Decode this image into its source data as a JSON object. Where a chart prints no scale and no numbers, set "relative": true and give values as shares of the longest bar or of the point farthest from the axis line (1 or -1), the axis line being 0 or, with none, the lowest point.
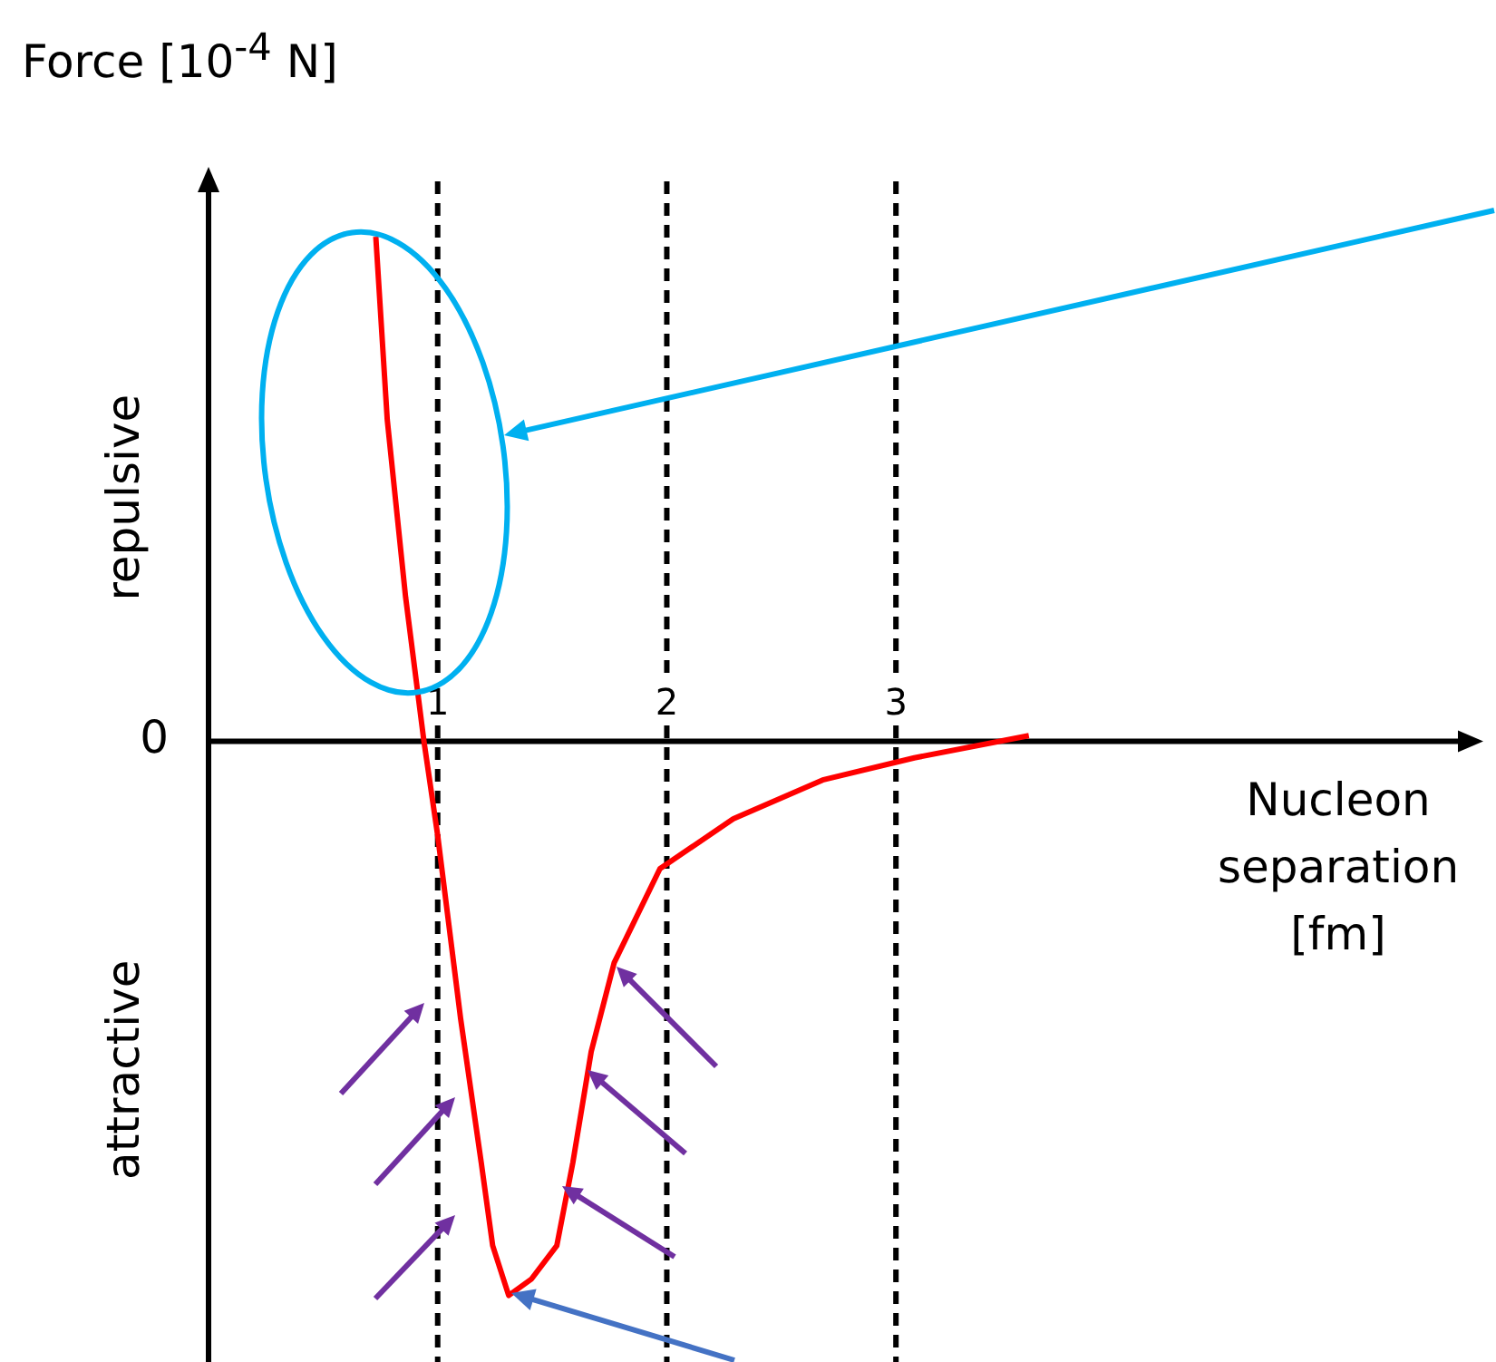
{
  "chart_data": {
    "type": "line",
    "ylabel": "Force [10$^{-4}$ N]",
    "xlabel": "Nucleon separation [fm]",
    "relative": true,
    "legend": false,
    "grid": false,
    "marker": "none",
    "xlim": [
      0,
      5.5
    ],
    "xticks": [
      1,
      2,
      3
    ],
    "series": [
      {
        "color": "#ff0000",
        "x": [
          0.73,
          0.78,
          0.86,
          0.94,
          1.0,
          1.1,
          1.19,
          1.24,
          1.31,
          1.41,
          1.52,
          1.59,
          1.67,
          1.77,
          1.97,
          2.29,
          2.68,
          3.08,
          3.58
        ],
        "values": [
          0.91,
          0.58,
          0.26,
          0,
          -0.17,
          -0.5,
          -0.76,
          -0.91,
          -1,
          -0.97,
          -0.91,
          -0.76,
          -0.56,
          -0.4,
          -0.23,
          -0.14,
          -0.07,
          -0.03,
          0.01
        ]
      }
    ],
    "ref_lines": [
      {
        "axis": "x",
        "value": 1,
        "color": "#000000",
        "line_style": "dashed"
      },
      {
        "axis": "x",
        "value": 2,
        "color": "#000000",
        "line_style": "dashed"
      },
      {
        "axis": "x",
        "value": 3,
        "color": "#000000",
        "line_style": "dashed"
      }
    ],
    "annotations": [
      "repulsive",
      "attractive",
      "0"
    ]
  }
}
